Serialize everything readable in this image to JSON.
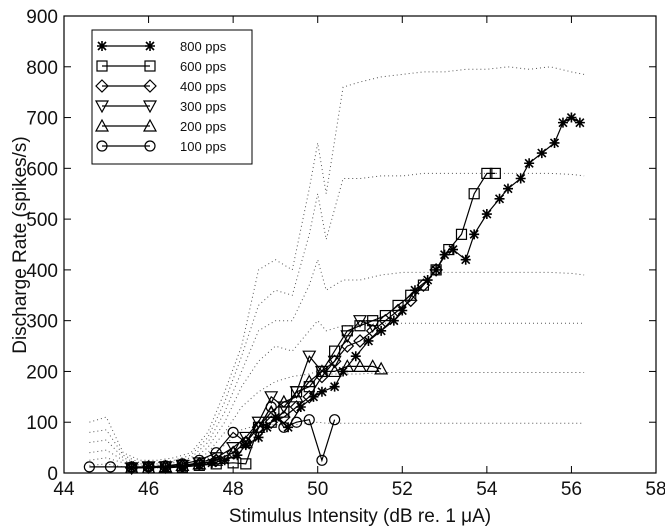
{
  "chart_data": {
    "type": "line",
    "xlabel": "Stimulus Intensity (dB re. 1 μA)",
    "ylabel": "Discharge Rate (spikes/s)",
    "xlim": [
      44,
      58
    ],
    "ylim": [
      0,
      900
    ],
    "xticks": [
      "44",
      "46",
      "48",
      "50",
      "52",
      "54",
      "56",
      "58"
    ],
    "yticks": [
      "0",
      "100",
      "200",
      "300",
      "400",
      "500",
      "600",
      "700",
      "800",
      "900"
    ],
    "grid": false,
    "legend_position": "top-left",
    "series": [
      {
        "name": "800 pps",
        "marker": "asterisk",
        "x": [
          45.6,
          46.0,
          46.4,
          46.8,
          47.2,
          47.5,
          47.8,
          48.1,
          48.3,
          48.6,
          48.8,
          49.0,
          49.3,
          49.6,
          49.9,
          50.1,
          50.4,
          50.6,
          50.9,
          51.2,
          51.5,
          51.8,
          52.0,
          52.3,
          52.6,
          52.8,
          53.0,
          53.2,
          53.5,
          53.7,
          54.0,
          54.3,
          54.5,
          54.8,
          55.0,
          55.3,
          55.6,
          55.8,
          56.0,
          56.2
        ],
        "y": [
          10,
          12,
          10,
          12,
          15,
          20,
          25,
          35,
          55,
          70,
          90,
          110,
          90,
          130,
          150,
          160,
          170,
          200,
          230,
          260,
          280,
          300,
          320,
          360,
          380,
          400,
          430,
          440,
          420,
          470,
          510,
          540,
          560,
          580,
          610,
          630,
          650,
          690,
          700,
          690
        ]
      },
      {
        "name": "600 pps",
        "marker": "square",
        "x": [
          45.6,
          46.0,
          46.4,
          46.8,
          47.2,
          47.6,
          48.0,
          48.3,
          48.6,
          48.9,
          49.2,
          49.5,
          49.8,
          50.1,
          50.4,
          50.7,
          51.0,
          51.3,
          51.6,
          51.9,
          52.2,
          52.5,
          52.8,
          53.1,
          53.4,
          53.7,
          54.0,
          54.2
        ],
        "y": [
          10,
          10,
          12,
          12,
          15,
          18,
          20,
          18,
          90,
          100,
          120,
          160,
          170,
          200,
          240,
          280,
          290,
          300,
          310,
          330,
          350,
          370,
          400,
          440,
          470,
          550,
          590,
          590
        ]
      },
      {
        "name": "400 pps",
        "marker": "diamond",
        "x": [
          45.6,
          46.0,
          46.4,
          46.8,
          47.2,
          47.6,
          48.0,
          48.3,
          48.6,
          48.9,
          49.2,
          49.5,
          49.8,
          50.1,
          50.4,
          50.7,
          51.0,
          51.3,
          51.6,
          51.9,
          52.2,
          52.5,
          52.8
        ],
        "y": [
          10,
          12,
          12,
          14,
          18,
          25,
          40,
          60,
          90,
          100,
          110,
          130,
          150,
          190,
          220,
          250,
          260,
          280,
          300,
          320,
          340,
          370,
          400
        ]
      },
      {
        "name": "300 pps",
        "marker": "triangle-down",
        "x": [
          45.6,
          46.0,
          46.4,
          46.8,
          47.2,
          47.6,
          48.0,
          48.3,
          48.6,
          48.9,
          49.2,
          49.5,
          49.8,
          50.1,
          50.4,
          50.7,
          51.0,
          51.3
        ],
        "y": [
          10,
          12,
          12,
          15,
          20,
          30,
          50,
          70,
          100,
          150,
          130,
          160,
          230,
          200,
          220,
          270,
          300,
          290
        ]
      },
      {
        "name": "200 pps",
        "marker": "triangle-up",
        "x": [
          45.6,
          46.0,
          46.4,
          46.8,
          47.2,
          47.6,
          48.0,
          48.3,
          48.6,
          48.9,
          49.2,
          49.5,
          49.8,
          50.1,
          50.4,
          50.7,
          51.0,
          51.3,
          51.5
        ],
        "y": [
          10,
          10,
          12,
          15,
          18,
          25,
          40,
          60,
          90,
          120,
          140,
          150,
          180,
          200,
          200,
          210,
          210,
          210,
          205
        ]
      },
      {
        "name": "100 pps",
        "marker": "circle",
        "x": [
          44.6,
          45.1,
          45.6,
          46.0,
          46.4,
          46.8,
          47.2,
          47.6,
          48.0,
          48.3,
          48.6,
          48.9,
          49.2,
          49.5,
          49.8,
          50.1,
          50.4
        ],
        "y": [
          12,
          12,
          12,
          12,
          14,
          18,
          25,
          40,
          80,
          60,
          90,
          130,
          90,
          100,
          105,
          25,
          105
        ]
      }
    ],
    "dotted_curves": [
      {
        "x": [
          44.6,
          45.0,
          45.4,
          45.8,
          46.2,
          46.6,
          47.0,
          47.4,
          47.8,
          48.2,
          48.6,
          49.0,
          49.4,
          49.8,
          50.0,
          50.2,
          50.6,
          51.0,
          51.5,
          52.0,
          52.5,
          53.0,
          53.5,
          54.0,
          54.5,
          55.0,
          55.5,
          56.0,
          56.3
        ],
        "y": [
          100,
          110,
          40,
          25,
          25,
          30,
          40,
          80,
          160,
          250,
          400,
          420,
          400,
          560,
          650,
          550,
          760,
          770,
          780,
          785,
          790,
          790,
          795,
          795,
          800,
          795,
          800,
          790,
          785
        ]
      },
      {
        "x": [
          44.6,
          45.0,
          45.4,
          45.8,
          46.2,
          46.6,
          47.0,
          47.4,
          47.8,
          48.2,
          48.6,
          49.0,
          49.4,
          49.8,
          50.0,
          50.2,
          50.6,
          51.0,
          51.5,
          52.0,
          52.5,
          53.0,
          53.5,
          54.0,
          54.5,
          55.0,
          55.5,
          56.0,
          56.3
        ],
        "y": [
          80,
          85,
          35,
          20,
          20,
          25,
          35,
          70,
          140,
          230,
          330,
          360,
          350,
          470,
          550,
          460,
          580,
          580,
          585,
          585,
          590,
          590,
          590,
          590,
          590,
          590,
          590,
          588,
          585
        ]
      },
      {
        "x": [
          44.6,
          45.0,
          45.4,
          45.8,
          46.2,
          46.6,
          47.0,
          47.4,
          47.8,
          48.2,
          48.6,
          49.0,
          49.4,
          49.8,
          50.0,
          50.2,
          50.6,
          51.0,
          51.5,
          52.0,
          52.5,
          53.0,
          53.5,
          54.0,
          54.5,
          55.0,
          55.5,
          56.0,
          56.3
        ],
        "y": [
          60,
          65,
          30,
          18,
          18,
          22,
          30,
          60,
          120,
          200,
          280,
          300,
          300,
          370,
          420,
          360,
          380,
          380,
          390,
          395,
          395,
          395,
          395,
          395,
          395,
          395,
          395,
          393,
          390
        ]
      },
      {
        "x": [
          44.6,
          45.0,
          45.4,
          45.8,
          46.2,
          46.6,
          47.0,
          47.4,
          47.8,
          48.2,
          48.6,
          49.0,
          49.4,
          49.8,
          50.0,
          50.2,
          50.6,
          51.0,
          51.5,
          52.0,
          52.5,
          53.0,
          53.5,
          54.0,
          54.5,
          55.0,
          55.5,
          56.0,
          56.3
        ],
        "y": [
          40,
          45,
          25,
          15,
          15,
          20,
          25,
          50,
          100,
          170,
          220,
          250,
          240,
          280,
          300,
          280,
          290,
          290,
          295,
          295,
          295,
          295,
          295,
          295,
          295,
          295,
          295,
          295,
          295
        ]
      },
      {
        "x": [
          44.6,
          45.0,
          45.4,
          45.8,
          46.2,
          46.6,
          47.0,
          47.4,
          47.8,
          48.2,
          48.6,
          49.0,
          49.4,
          49.8,
          50.0,
          50.2,
          50.6,
          51.0,
          51.5,
          52.0,
          52.5,
          53.0,
          53.5,
          54.0,
          54.5,
          55.0,
          55.5,
          56.0,
          56.3
        ],
        "y": [
          25,
          30,
          20,
          12,
          12,
          15,
          20,
          40,
          80,
          130,
          160,
          180,
          190,
          195,
          200,
          195,
          195,
          195,
          198,
          198,
          198,
          198,
          198,
          198,
          198,
          198,
          198,
          198,
          198
        ]
      },
      {
        "x": [
          44.6,
          45.0,
          45.4,
          45.8,
          46.2,
          46.6,
          47.0,
          47.4,
          47.8,
          48.2,
          48.6,
          49.0,
          49.4,
          49.8,
          50.0,
          50.2,
          50.6,
          51.0,
          51.5,
          52.0,
          52.5,
          53.0,
          53.5,
          54.0,
          54.5,
          55.0,
          55.5,
          56.0,
          56.3
        ],
        "y": [
          15,
          18,
          12,
          10,
          10,
          12,
          15,
          30,
          55,
          85,
          95,
          95,
          95,
          98,
          100,
          98,
          98,
          98,
          98,
          98,
          98,
          98,
          98,
          98,
          98,
          98,
          98,
          98,
          98
        ]
      }
    ]
  }
}
